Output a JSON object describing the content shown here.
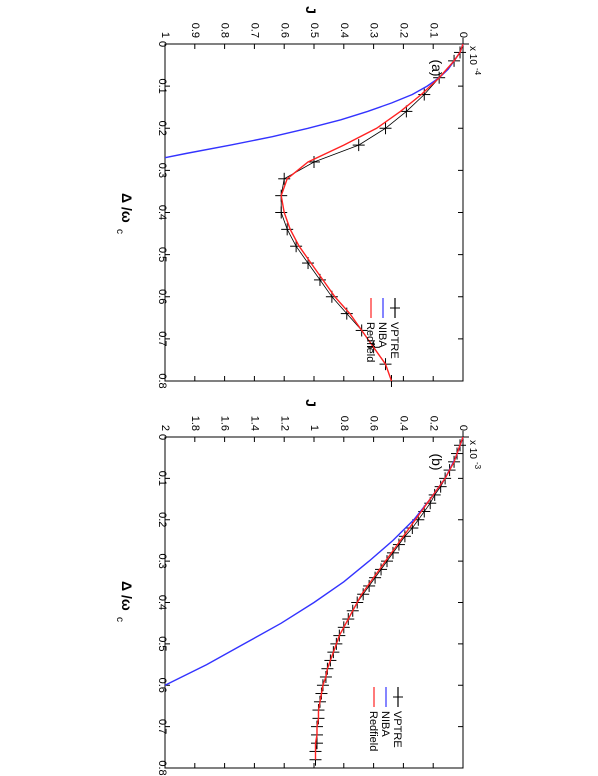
{
  "chart_data": [
    {
      "type": "line",
      "panel_label": "(a)",
      "xlabel": "Δ /ω",
      "xlabel_sub": "c",
      "ylabel": "J",
      "xlim": [
        0,
        0.8
      ],
      "ylim": [
        0,
        1
      ],
      "y_multiplier": "x 10",
      "y_multiplier_exp": "-4",
      "x_ticks": [
        "0",
        "0.1",
        "0.2",
        "0.3",
        "0.4",
        "0.5",
        "0.6",
        "0.7",
        "0.8"
      ],
      "y_ticks": [
        "0",
        "0.1",
        "0.2",
        "0.3",
        "0.4",
        "0.5",
        "0.6",
        "0.7",
        "0.8",
        "0.9",
        "1"
      ],
      "legend_position": "bottom-right",
      "series": [
        {
          "name": "VPTRE",
          "color": "#000000",
          "marker": "+",
          "x": [
            0,
            0.02,
            0.04,
            0.08,
            0.12,
            0.16,
            0.2,
            0.24,
            0.28,
            0.32,
            0.36,
            0.4,
            0.44,
            0.48,
            0.52,
            0.56,
            0.6,
            0.64,
            0.68,
            0.72,
            0.76,
            0.8
          ],
          "y": [
            0,
            0.01,
            0.03,
            0.08,
            0.13,
            0.19,
            0.26,
            0.35,
            0.5,
            0.6,
            0.61,
            0.61,
            0.59,
            0.56,
            0.52,
            0.48,
            0.44,
            0.39,
            0.34,
            0.3,
            0.26,
            0.24
          ]
        },
        {
          "name": "NIBA",
          "color": "#3333ff",
          "x": [
            0,
            0.02,
            0.04,
            0.06,
            0.08,
            0.1,
            0.12,
            0.14,
            0.16,
            0.18,
            0.2,
            0.22,
            0.24,
            0.26,
            0.27
          ],
          "y": [
            0,
            0.01,
            0.03,
            0.05,
            0.08,
            0.12,
            0.17,
            0.24,
            0.32,
            0.41,
            0.52,
            0.64,
            0.78,
            0.93,
            1.0
          ]
        },
        {
          "name": "Redfield",
          "color": "#ff2222",
          "x": [
            0,
            0.02,
            0.04,
            0.08,
            0.12,
            0.16,
            0.2,
            0.24,
            0.28,
            0.32,
            0.36,
            0.4,
            0.44,
            0.48,
            0.52,
            0.56,
            0.6,
            0.64,
            0.68,
            0.72,
            0.76,
            0.8
          ],
          "y": [
            0,
            0.01,
            0.03,
            0.08,
            0.14,
            0.21,
            0.29,
            0.4,
            0.52,
            0.59,
            0.61,
            0.6,
            0.58,
            0.55,
            0.51,
            0.47,
            0.43,
            0.38,
            0.34,
            0.3,
            0.26,
            0.24
          ]
        }
      ]
    },
    {
      "type": "line",
      "panel_label": "(b)",
      "xlabel": "Δ /ω",
      "xlabel_sub": "c",
      "ylabel": "J",
      "xlim": [
        0,
        0.8
      ],
      "ylim": [
        0,
        2
      ],
      "y_multiplier": "x 10",
      "y_multiplier_exp": "-3",
      "x_ticks": [
        "0",
        "0.1",
        "0.2",
        "0.3",
        "0.4",
        "0.5",
        "0.6",
        "0.7",
        "0.8"
      ],
      "y_ticks": [
        "0",
        "0.2",
        "0.4",
        "0.6",
        "0.8",
        "1",
        "1.2",
        "1.4",
        "1.6",
        "1.8",
        "2"
      ],
      "legend_position": "bottom-right",
      "series": [
        {
          "name": "VPTRE",
          "color": "#000000",
          "marker": "+",
          "x": [
            0,
            0.02,
            0.04,
            0.06,
            0.08,
            0.1,
            0.12,
            0.14,
            0.16,
            0.18,
            0.2,
            0.22,
            0.24,
            0.26,
            0.28,
            0.3,
            0.32,
            0.34,
            0.36,
            0.38,
            0.4,
            0.42,
            0.44,
            0.46,
            0.48,
            0.5,
            0.52,
            0.54,
            0.56,
            0.58,
            0.6,
            0.62,
            0.64,
            0.66,
            0.68,
            0.7,
            0.72,
            0.74,
            0.76,
            0.78
          ],
          "y": [
            0,
            0.02,
            0.04,
            0.06,
            0.09,
            0.12,
            0.15,
            0.19,
            0.22,
            0.26,
            0.3,
            0.34,
            0.39,
            0.43,
            0.47,
            0.51,
            0.55,
            0.59,
            0.63,
            0.67,
            0.71,
            0.74,
            0.77,
            0.8,
            0.83,
            0.85,
            0.87,
            0.89,
            0.91,
            0.92,
            0.94,
            0.95,
            0.96,
            0.97,
            0.97,
            0.98,
            0.98,
            0.98,
            0.99,
            0.99
          ]
        },
        {
          "name": "NIBA",
          "color": "#3333ff",
          "x": [
            0,
            0.05,
            0.1,
            0.15,
            0.2,
            0.25,
            0.3,
            0.35,
            0.4,
            0.45,
            0.5,
            0.55,
            0.6
          ],
          "y": [
            0,
            0.05,
            0.12,
            0.22,
            0.33,
            0.47,
            0.63,
            0.8,
            1.0,
            1.22,
            1.47,
            1.72,
            2.0
          ]
        },
        {
          "name": "Redfield",
          "color": "#ff2222",
          "x": [
            0,
            0.02,
            0.04,
            0.06,
            0.08,
            0.1,
            0.12,
            0.14,
            0.16,
            0.18,
            0.2,
            0.22,
            0.24,
            0.26,
            0.28,
            0.3,
            0.32,
            0.34,
            0.36,
            0.38,
            0.4,
            0.42,
            0.44,
            0.46,
            0.48,
            0.5,
            0.52,
            0.54,
            0.56,
            0.58,
            0.6,
            0.62,
            0.64,
            0.66,
            0.68,
            0.7,
            0.72,
            0.74,
            0.76,
            0.78
          ],
          "y": [
            0,
            0.02,
            0.04,
            0.06,
            0.09,
            0.12,
            0.16,
            0.2,
            0.24,
            0.28,
            0.32,
            0.36,
            0.4,
            0.44,
            0.48,
            0.52,
            0.56,
            0.6,
            0.64,
            0.68,
            0.71,
            0.74,
            0.77,
            0.8,
            0.83,
            0.85,
            0.87,
            0.89,
            0.91,
            0.92,
            0.94,
            0.95,
            0.96,
            0.97,
            0.97,
            0.98,
            0.98,
            0.99,
            0.99,
            0.99
          ]
        }
      ]
    }
  ]
}
